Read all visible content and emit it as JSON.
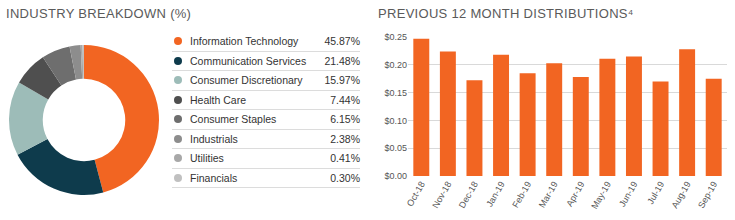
{
  "chart_data": [
    {
      "type": "pie",
      "title": "INDUSTRY BREAKDOWN (%)",
      "categories": [
        "Information Technology",
        "Communication Services",
        "Consumer Discretionary",
        "Health Care",
        "Consumer Staples",
        "Industrials",
        "Utilities",
        "Financials"
      ],
      "values": [
        45.87,
        21.48,
        15.97,
        7.44,
        6.15,
        2.38,
        0.41,
        0.3
      ],
      "value_labels": [
        "45.87%",
        "21.48%",
        "15.97%",
        "7.44%",
        "6.15%",
        "2.38%",
        "0.41%",
        "0.30%"
      ],
      "colors": [
        "#f26522",
        "#0e3b4c",
        "#9dbcb8",
        "#4f4f4f",
        "#6e6e6e",
        "#8d8d8d",
        "#a8a8a8",
        "#c0c0c0"
      ],
      "data_labels": true,
      "legend": "right"
    },
    {
      "type": "bar",
      "title": "PREVIOUS 12 MONTH DISTRIBUTIONS⁴",
      "categories": [
        "Oct-18",
        "Nov-18",
        "Dec-18",
        "Jan-19",
        "Feb-19",
        "Mar-19",
        "Apr-19",
        "May-19",
        "Jun-19",
        "Jul-19",
        "Aug-19",
        "Sep-19"
      ],
      "values": [
        0.247,
        0.224,
        0.172,
        0.218,
        0.185,
        0.203,
        0.178,
        0.211,
        0.215,
        0.17,
        0.228,
        0.175
      ],
      "color": "#f26522",
      "ylim": [
        0,
        0.25
      ],
      "yticks": [
        {
          "value": 0,
          "label": "$0.00"
        },
        {
          "value": 0.05,
          "label": "$0.05"
        },
        {
          "value": 0.1,
          "label": "$0.10"
        },
        {
          "value": 0.15,
          "label": "$0.15"
        },
        {
          "value": 0.2,
          "label": "$0.20"
        },
        {
          "value": 0.25,
          "label": "$0.25"
        }
      ],
      "grid": true
    }
  ]
}
